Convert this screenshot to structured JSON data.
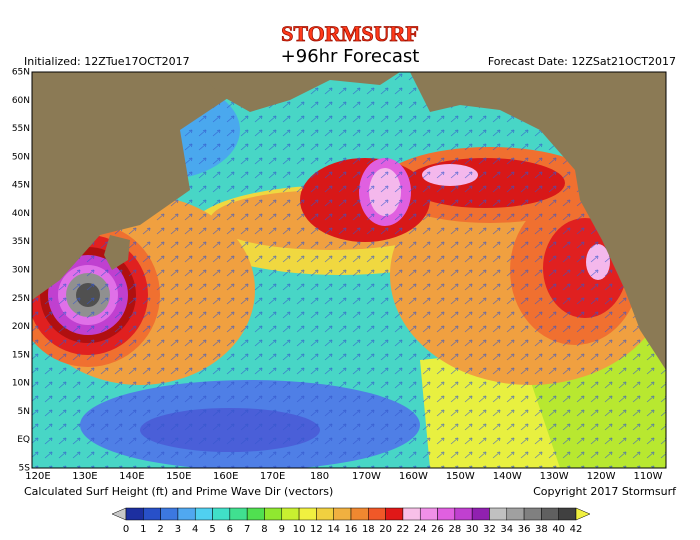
{
  "header": {
    "logo": "STORMSURF",
    "title": "+96hr Forecast",
    "initialized": "Initialized: 12ZTue17OCT2017",
    "forecast_date": "Forecast Date: 12ZSat21OCT2017"
  },
  "map": {
    "lat_labels": [
      "65N",
      "60N",
      "55N",
      "50N",
      "45N",
      "40N",
      "35N",
      "30N",
      "25N",
      "20N",
      "15N",
      "10N",
      "5N",
      "EQ",
      "5S"
    ],
    "lon_labels": [
      "120E",
      "130E",
      "140E",
      "150E",
      "160E",
      "170E",
      "180",
      "170W",
      "160W",
      "150W",
      "140W",
      "130W",
      "120W",
      "110W"
    ]
  },
  "footer": {
    "caption": "Calculated Surf Height (ft) and Prime Wave Dir (vectors)",
    "copyright": "Copyright 2017 Stormsurf"
  },
  "legend": {
    "labels": [
      0,
      1,
      2,
      3,
      4,
      5,
      6,
      7,
      8,
      9,
      10,
      12,
      14,
      16,
      18,
      20,
      22,
      24,
      26,
      28,
      30,
      32,
      34,
      36,
      38,
      40,
      42
    ],
    "colors": [
      "#c8c8c8",
      "#1c2fa0",
      "#2850c8",
      "#3c78e0",
      "#50a8f0",
      "#50d0f0",
      "#40e0c8",
      "#40e090",
      "#50e050",
      "#90e830",
      "#c8f030",
      "#f0f040",
      "#f0d040",
      "#f0b040",
      "#f08830",
      "#f05828",
      "#e01818",
      "#f8c0e8",
      "#f090e8",
      "#e060e0",
      "#c040d0",
      "#9020b0",
      "#c0c0c0",
      "#a0a0a0",
      "#808080",
      "#606060",
      "#404040",
      "#f0f040"
    ]
  }
}
